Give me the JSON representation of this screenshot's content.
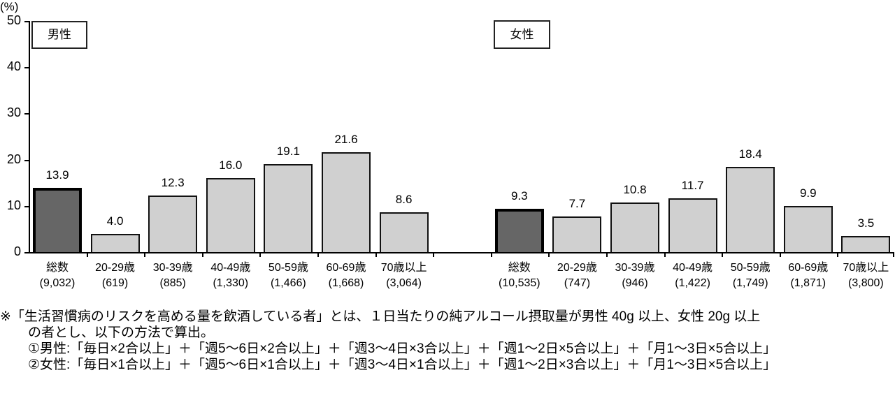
{
  "chart_data": {
    "type": "bar",
    "title": "",
    "ylabel": "(%)",
    "xlabel": "",
    "ylim": [
      0,
      50
    ],
    "yticks": [
      0,
      10,
      20,
      30,
      40,
      50
    ],
    "grid": false,
    "panels": [
      {
        "label": "男性",
        "categories": [
          "総数",
          "20-29歳",
          "30-39歳",
          "40-49歳",
          "50-59歳",
          "60-69歳",
          "70歳以上"
        ],
        "sample_sizes": [
          "(9,032)",
          "(619)",
          "(885)",
          "(1,330)",
          "(1,466)",
          "(1,668)",
          "(3,064)"
        ],
        "values": [
          13.9,
          4.0,
          12.3,
          16.0,
          19.1,
          21.6,
          8.6
        ],
        "value_labels": [
          "13.9",
          "4.0",
          "12.3",
          "16.0",
          "19.1",
          "21.6",
          "8.6"
        ]
      },
      {
        "label": "女性",
        "categories": [
          "総数",
          "20-29歳",
          "30-39歳",
          "40-49歳",
          "50-59歳",
          "60-69歳",
          "70歳以上"
        ],
        "sample_sizes": [
          "(10,535)",
          "(747)",
          "(946)",
          "(1,422)",
          "(1,749)",
          "(1,871)",
          "(3,800)"
        ],
        "values": [
          9.3,
          7.7,
          10.8,
          11.7,
          18.4,
          9.9,
          3.5
        ],
        "value_labels": [
          "9.3",
          "7.7",
          "10.8",
          "11.7",
          "18.4",
          "9.9",
          "3.5"
        ]
      }
    ]
  },
  "colors": {
    "total_bar": "#666666",
    "age_bar": "#d0d0d0",
    "border": "#000000"
  },
  "notes": {
    "line1": "※「生活習慣病のリスクを高める量を飲酒している者」とは、１日当たりの純アルコール摂取量が男性 40g 以上、女性 20g 以上",
    "line2": "の者とし、以下の方法で算出。",
    "line3": "①男性:「毎日×2合以上」＋「週5～6日×2合以上」＋「週3～4日×3合以上」＋「週1～2日×5合以上」＋「月1～3日×5合以上」",
    "line4": "②女性:「毎日×1合以上」＋「週5～6日×1合以上」＋「週3～4日×1合以上」＋「週1～2日×3合以上」＋「月1～3日×5合以上」"
  }
}
